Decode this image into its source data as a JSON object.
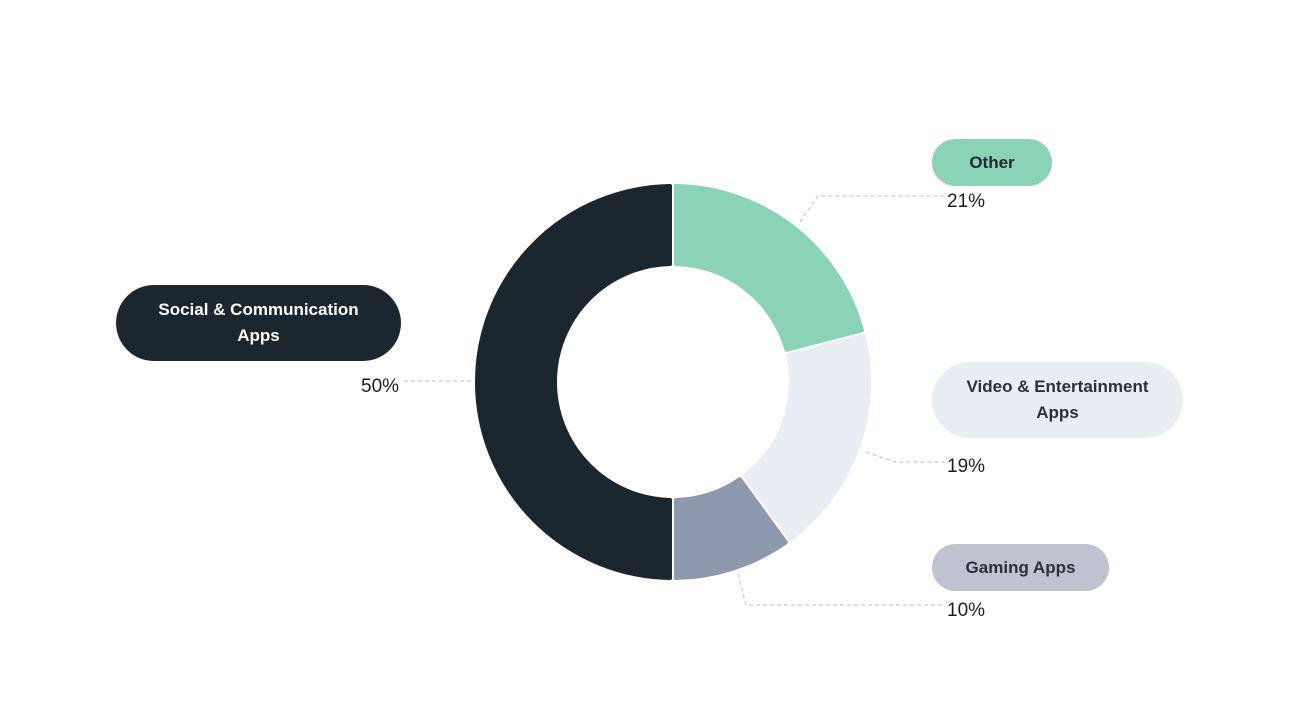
{
  "chart_data": {
    "type": "pie",
    "variant": "donut",
    "title": "",
    "slices": [
      {
        "label": "Other",
        "value": 21,
        "value_label": "21%",
        "color": "#8AD3B7",
        "text_color": "#1E2A2E"
      },
      {
        "label": "Video & Entertainment Apps",
        "value": 19,
        "value_label": "19%",
        "color": "#E8EEF4",
        "text_color": "#2B3138"
      },
      {
        "label": "Gaming Apps",
        "value": 10,
        "value_label": "10%",
        "color": "#8E99AE",
        "text_color": "#2B3138"
      },
      {
        "label": "Social & Communication Apps",
        "value": 50,
        "value_label": "50%",
        "color": "#1B262E",
        "text_color": "#FFFFFF"
      }
    ],
    "pill_colors": {
      "Other": "#8AD3B7",
      "Video & Entertainment Apps": "#E8EEF4",
      "Gaming Apps": "#BEC3CF",
      "Social & Communication Apps": "#1B262E"
    },
    "leader_color": "#CCCCCC",
    "legend": "none"
  }
}
